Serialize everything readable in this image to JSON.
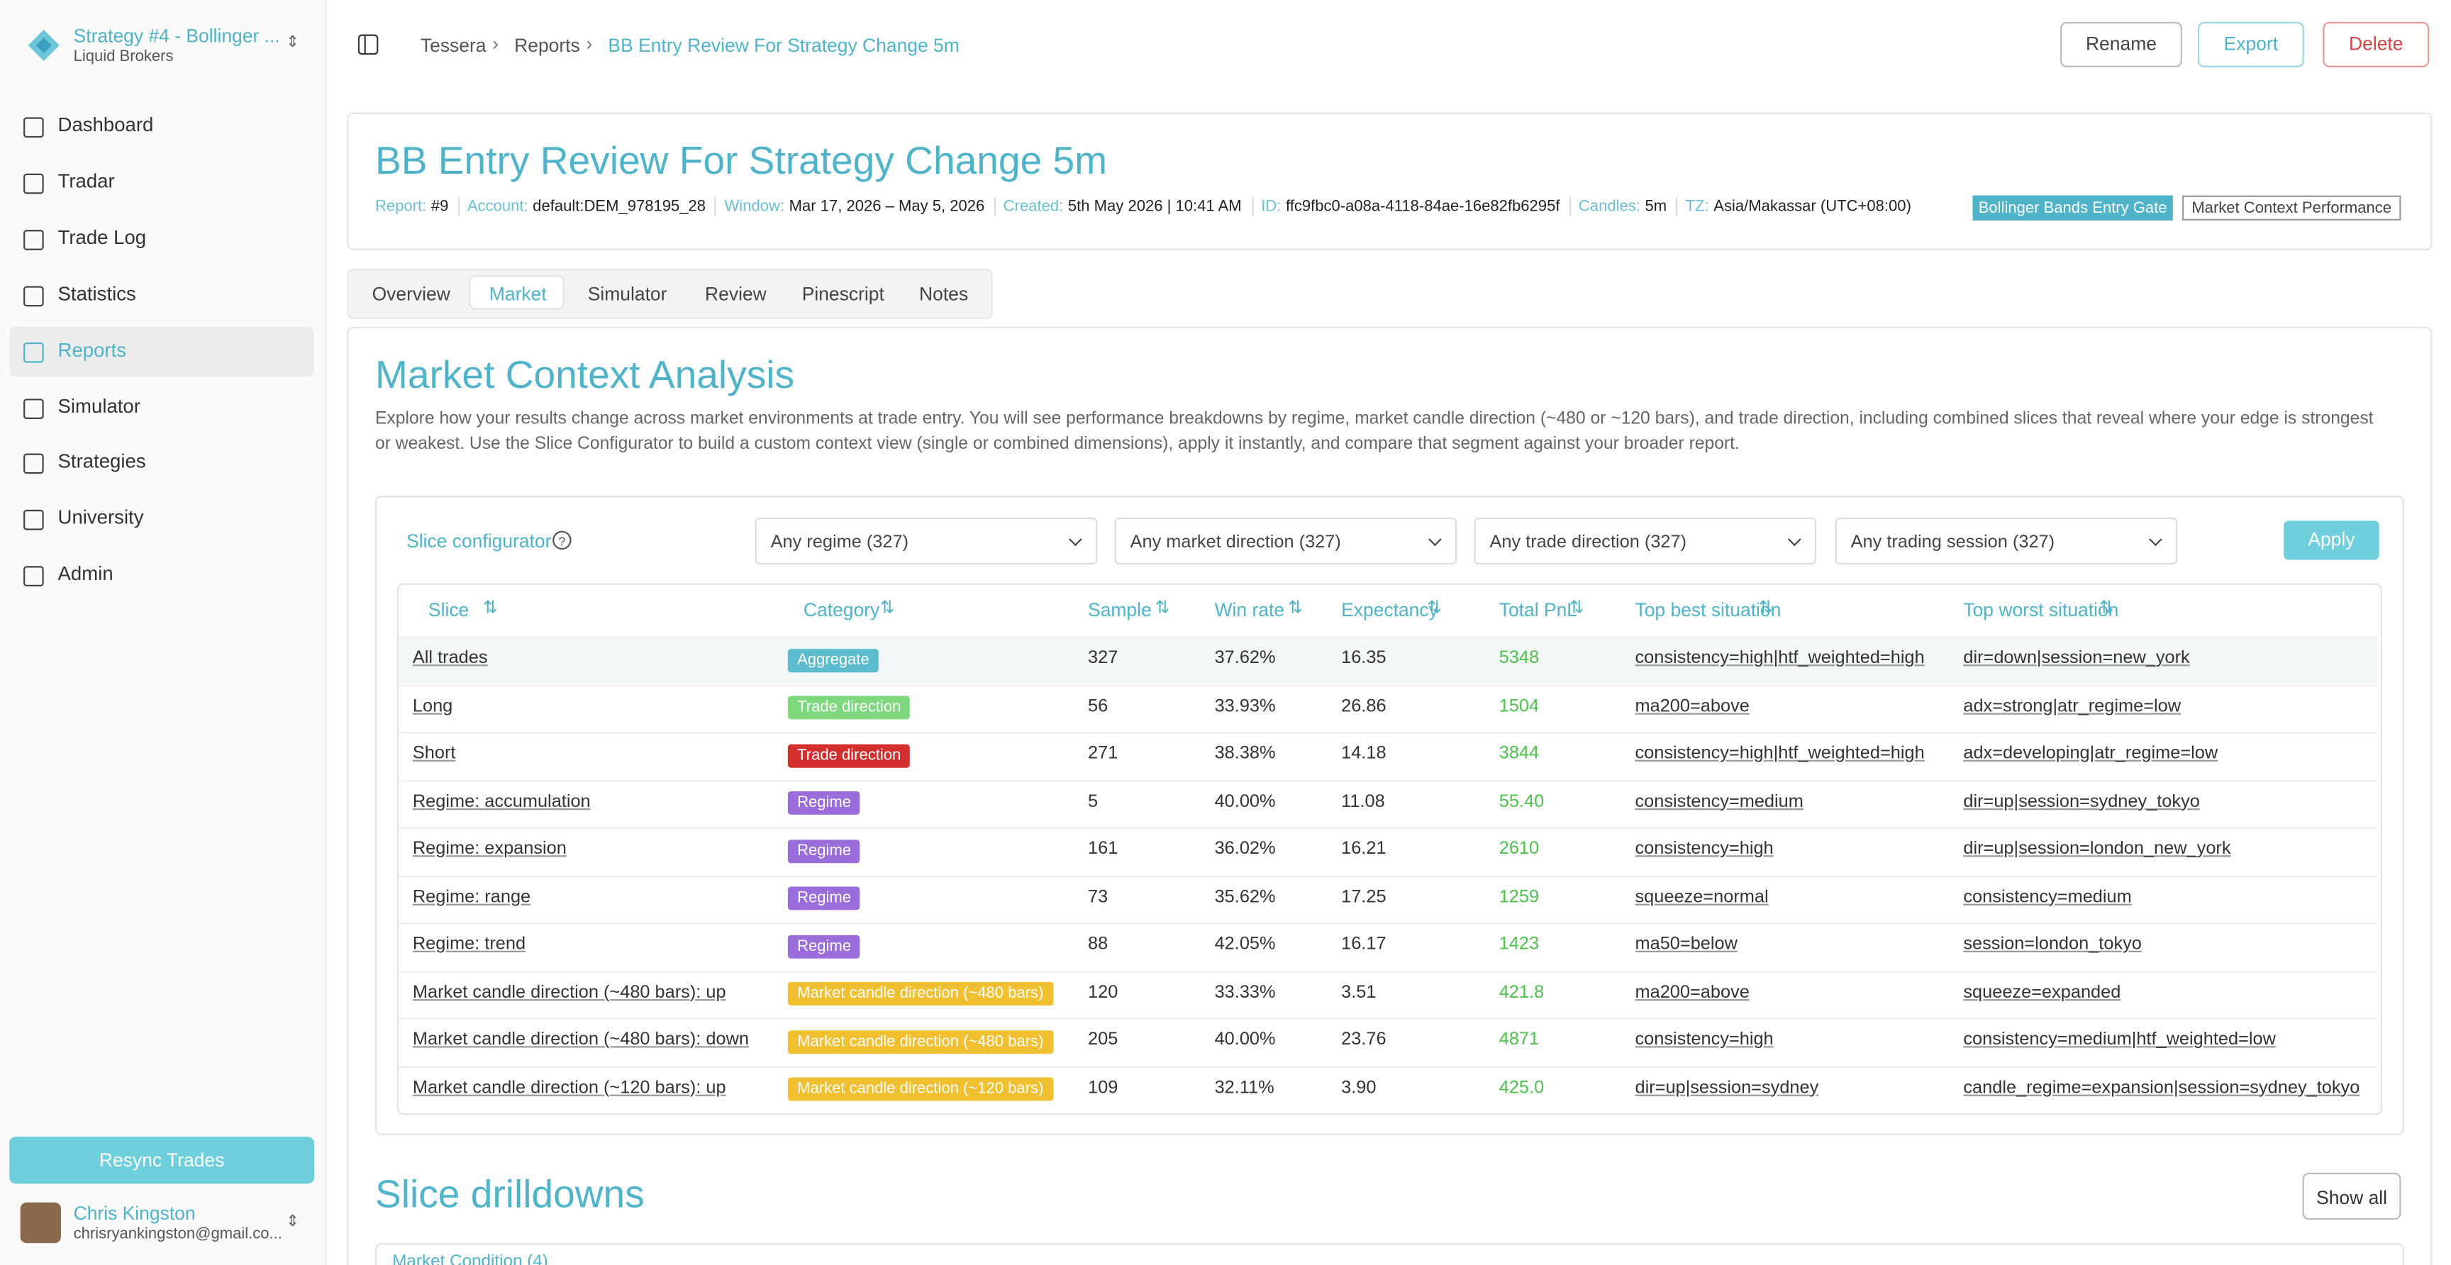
{
  "sidebar": {
    "workspace": {
      "name": "Strategy #4 - Bollinger ...",
      "broker": "Liquid Brokers"
    },
    "nav": [
      "Dashboard",
      "Tradar",
      "Trade Log",
      "Statistics",
      "Reports",
      "Simulator",
      "Strategies",
      "University",
      "Admin"
    ],
    "resync": "Resync Trades",
    "user": {
      "name": "Chris Kingston",
      "email": "chrisryankingston@gmail.co..."
    }
  },
  "header": {
    "breadcrumb": [
      "Tessera",
      "Reports",
      "BB Entry Review For Strategy Change 5m"
    ],
    "actions": [
      "Rename",
      "Export",
      "Delete"
    ]
  },
  "report": {
    "title": "BB Entry Review For Strategy Change 5m",
    "meta": [
      {
        "label": "Report:",
        "value": "#9"
      },
      {
        "label": "Account:",
        "value": "default:DEM_978195_28"
      },
      {
        "label": "Window:",
        "value": "Mar 17, 2026 – May 5, 2026"
      },
      {
        "label": "Created:",
        "value": "5th May 2026 | 10:41 AM"
      },
      {
        "label": "ID:",
        "value": "ffc9fbc0-a08a-4118-84ae-16e82fb6295f"
      },
      {
        "label": "Candles:",
        "value": "5m"
      },
      {
        "label": "TZ:",
        "value": "Asia/Makassar (UTC+08:00)"
      }
    ],
    "tags": [
      "Bollinger Bands Entry Gate",
      "Market Context Performance"
    ]
  },
  "tabs": [
    "Overview",
    "Market",
    "Simulator",
    "Review",
    "Pinescript",
    "Notes"
  ],
  "market": {
    "title": "Market Context Analysis",
    "description": "Explore how your results change across market environments at trade entry. You will see performance breakdowns by regime, market candle direction (~480 or ~120 bars), and trade direction, including combined slices that reveal where your edge is strongest or weakest. Use the Slice Configurator to build a custom context view (single or combined dimensions), apply it instantly, and compare that segment against your broader report.",
    "configurator": {
      "label": "Slice configurator",
      "filters": [
        "Any regime (327)",
        "Any market direction (327)",
        "Any trade direction (327)",
        "Any trading session (327)"
      ],
      "apply": "Apply"
    },
    "table": {
      "columns": [
        "Slice",
        "Category",
        "Sample",
        "Win rate",
        "Expectancy",
        "Total PnL",
        "Top best situation",
        "Top worst situation"
      ],
      "rows": [
        [
          "All trades",
          "Aggregate",
          "327",
          "37.62%",
          "16.35",
          "5348",
          "consistency=high|htf_weighted=high",
          "dir=down|session=new_york"
        ],
        [
          "Long",
          "Trade direction",
          "56",
          "33.93%",
          "26.86",
          "1504",
          "ma200=above",
          "adx=strong|atr_regime=low"
        ],
        [
          "Short",
          "Trade direction",
          "271",
          "38.38%",
          "14.18",
          "3844",
          "consistency=high|htf_weighted=high",
          "adx=developing|atr_regime=low"
        ],
        [
          "Regime: accumulation",
          "Regime",
          "5",
          "40.00%",
          "11.08",
          "55.40",
          "consistency=medium",
          "dir=up|session=sydney_tokyo"
        ],
        [
          "Regime: expansion",
          "Regime",
          "161",
          "36.02%",
          "16.21",
          "2610",
          "consistency=high",
          "dir=up|session=london_new_york"
        ],
        [
          "Regime: range",
          "Regime",
          "73",
          "35.62%",
          "17.25",
          "1259",
          "squeeze=normal",
          "consistency=medium"
        ],
        [
          "Regime: trend",
          "Regime",
          "88",
          "42.05%",
          "16.17",
          "1423",
          "ma50=below",
          "session=london_tokyo"
        ],
        [
          "Market candle direction (~480 bars): up",
          "Market candle direction (~480 bars)",
          "120",
          "33.33%",
          "3.51",
          "421.8",
          "ma200=above",
          "squeeze=expanded"
        ],
        [
          "Market candle direction (~480 bars): down",
          "Market candle direction (~480 bars)",
          "205",
          "40.00%",
          "23.76",
          "4871",
          "consistency=high",
          "consistency=medium|htf_weighted=low"
        ],
        [
          "Market candle direction (~120 bars): up",
          "Market candle direction (~120 bars)",
          "109",
          "32.11%",
          "3.90",
          "425.0",
          "dir=up|session=sydney",
          "candle_regime=expansion|session=sydney_tokyo"
        ]
      ]
    }
  },
  "drilldowns": {
    "title": "Slice drilldowns",
    "show_all": "Show all",
    "first": "Market Condition (4)"
  }
}
